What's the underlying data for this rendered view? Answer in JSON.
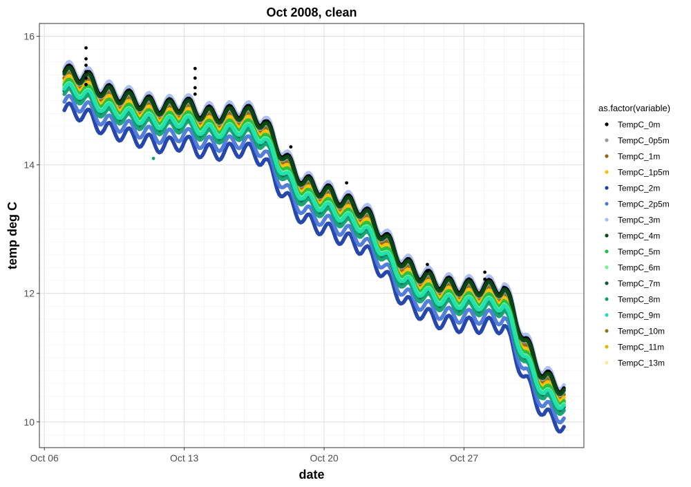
{
  "chart_data": {
    "type": "scatter",
    "title": "Oct 2008, clean",
    "xlabel": "date",
    "ylabel": "temp deg C",
    "xlim": [
      "2008-10-05T18:00",
      "2008-11-02T00:00"
    ],
    "ylim": [
      9.6,
      16.2
    ],
    "grid": true,
    "x_ticks": [
      {
        "label": "Oct 06",
        "date": "2008-10-06"
      },
      {
        "label": "Oct 13",
        "date": "2008-10-13"
      },
      {
        "label": "Oct 20",
        "date": "2008-10-20"
      },
      {
        "label": "Oct 27",
        "date": "2008-10-27"
      }
    ],
    "y_ticks": [
      10,
      12,
      14,
      16
    ],
    "legend": {
      "title": "as.factor(variable)",
      "position": "right"
    },
    "series": [
      {
        "name": "TempC_0m",
        "color": "#000000",
        "offset": 0.25
      },
      {
        "name": "TempC_0p5m",
        "color": "#999999",
        "offset": 0.2
      },
      {
        "name": "TempC_1m",
        "color": "#8B6508",
        "offset": 0.15
      },
      {
        "name": "TempC_1p5m",
        "color": "#FFC000",
        "offset": 0.1
      },
      {
        "name": "TempC_2m",
        "color": "#1A3DA8",
        "offset": -0.35
      },
      {
        "name": "TempC_2p5m",
        "color": "#4A78D8",
        "offset": -0.22
      },
      {
        "name": "TempC_3m",
        "color": "#A8BDF0",
        "offset": 0.3
      },
      {
        "name": "TempC_4m",
        "color": "#0B4A12",
        "offset": 0.22
      },
      {
        "name": "TempC_5m",
        "color": "#20C040",
        "offset": 0.05
      },
      {
        "name": "TempC_6m",
        "color": "#70F090",
        "offset": 0.0
      },
      {
        "name": "TempC_7m",
        "color": "#0E5A3A",
        "offset": -0.05
      },
      {
        "name": "TempC_8m",
        "color": "#10A070",
        "offset": -0.1
      },
      {
        "name": "TempC_9m",
        "color": "#20E0B0",
        "offset": -0.02
      },
      {
        "name": "TempC_10m",
        "color": "#8A7A10",
        "offset": 0.02
      },
      {
        "name": "TempC_11m",
        "color": "#E0B800",
        "offset": 0.0
      },
      {
        "name": "TempC_13m",
        "color": "#FFE8A0",
        "offset": 0.0
      }
    ],
    "trend": [
      {
        "date": "2008-10-07T00:00",
        "y": 15.2
      },
      {
        "date": "2008-10-08T00:00",
        "y": 15.1
      },
      {
        "date": "2008-10-09T00:00",
        "y": 14.85
      },
      {
        "date": "2008-10-10T00:00",
        "y": 14.8
      },
      {
        "date": "2008-10-11T00:00",
        "y": 14.75
      },
      {
        "date": "2008-10-12T00:00",
        "y": 14.7
      },
      {
        "date": "2008-10-13T00:00",
        "y": 14.75
      },
      {
        "date": "2008-10-14T00:00",
        "y": 14.55
      },
      {
        "date": "2008-10-15T00:00",
        "y": 14.5
      },
      {
        "date": "2008-10-16T00:00",
        "y": 14.55
      },
      {
        "date": "2008-10-17T00:00",
        "y": 14.4
      },
      {
        "date": "2008-10-18T00:00",
        "y": 13.9
      },
      {
        "date": "2008-10-19T00:00",
        "y": 13.55
      },
      {
        "date": "2008-10-20T00:00",
        "y": 13.4
      },
      {
        "date": "2008-10-21T00:00",
        "y": 13.2
      },
      {
        "date": "2008-10-22T00:00",
        "y": 13.0
      },
      {
        "date": "2008-10-23T00:00",
        "y": 12.6
      },
      {
        "date": "2008-10-24T00:00",
        "y": 12.2
      },
      {
        "date": "2008-10-25T00:00",
        "y": 12.05
      },
      {
        "date": "2008-10-26T00:00",
        "y": 11.95
      },
      {
        "date": "2008-10-27T00:00",
        "y": 11.9
      },
      {
        "date": "2008-10-28T00:00",
        "y": 11.85
      },
      {
        "date": "2008-10-29T00:00",
        "y": 11.8
      },
      {
        "date": "2008-10-30T00:00",
        "y": 11.0
      },
      {
        "date": "2008-10-31T00:00",
        "y": 10.45
      },
      {
        "date": "2008-11-01T00:00",
        "y": 10.3
      }
    ],
    "spikes": [
      {
        "date": "2008-10-08T02:00",
        "y": 15.82
      },
      {
        "date": "2008-10-08T02:00",
        "y": 15.65
      },
      {
        "date": "2008-10-08T02:00",
        "y": 15.55
      },
      {
        "date": "2008-10-08T02:00",
        "y": 15.45
      },
      {
        "date": "2008-10-08T02:00",
        "y": 15.35
      },
      {
        "date": "2008-10-08T02:00",
        "y": 15.25
      },
      {
        "date": "2008-10-13T13:00",
        "y": 15.5
      },
      {
        "date": "2008-10-13T13:00",
        "y": 15.35
      },
      {
        "date": "2008-10-13T13:00",
        "y": 15.2
      },
      {
        "date": "2008-10-13T13:00",
        "y": 15.1
      },
      {
        "date": "2008-10-18T08:00",
        "y": 14.28
      },
      {
        "date": "2008-10-21T03:00",
        "y": 13.72
      },
      {
        "date": "2008-10-25T04:00",
        "y": 12.45
      },
      {
        "date": "2008-10-25T04:00",
        "y": 12.35
      },
      {
        "date": "2008-10-28T01:00",
        "y": 12.33
      },
      {
        "date": "2008-10-28T01:00",
        "y": 12.22
      }
    ],
    "outliers": [
      {
        "date": "2008-10-11T11:00",
        "y": 14.1,
        "color": "#10A070"
      }
    ]
  }
}
